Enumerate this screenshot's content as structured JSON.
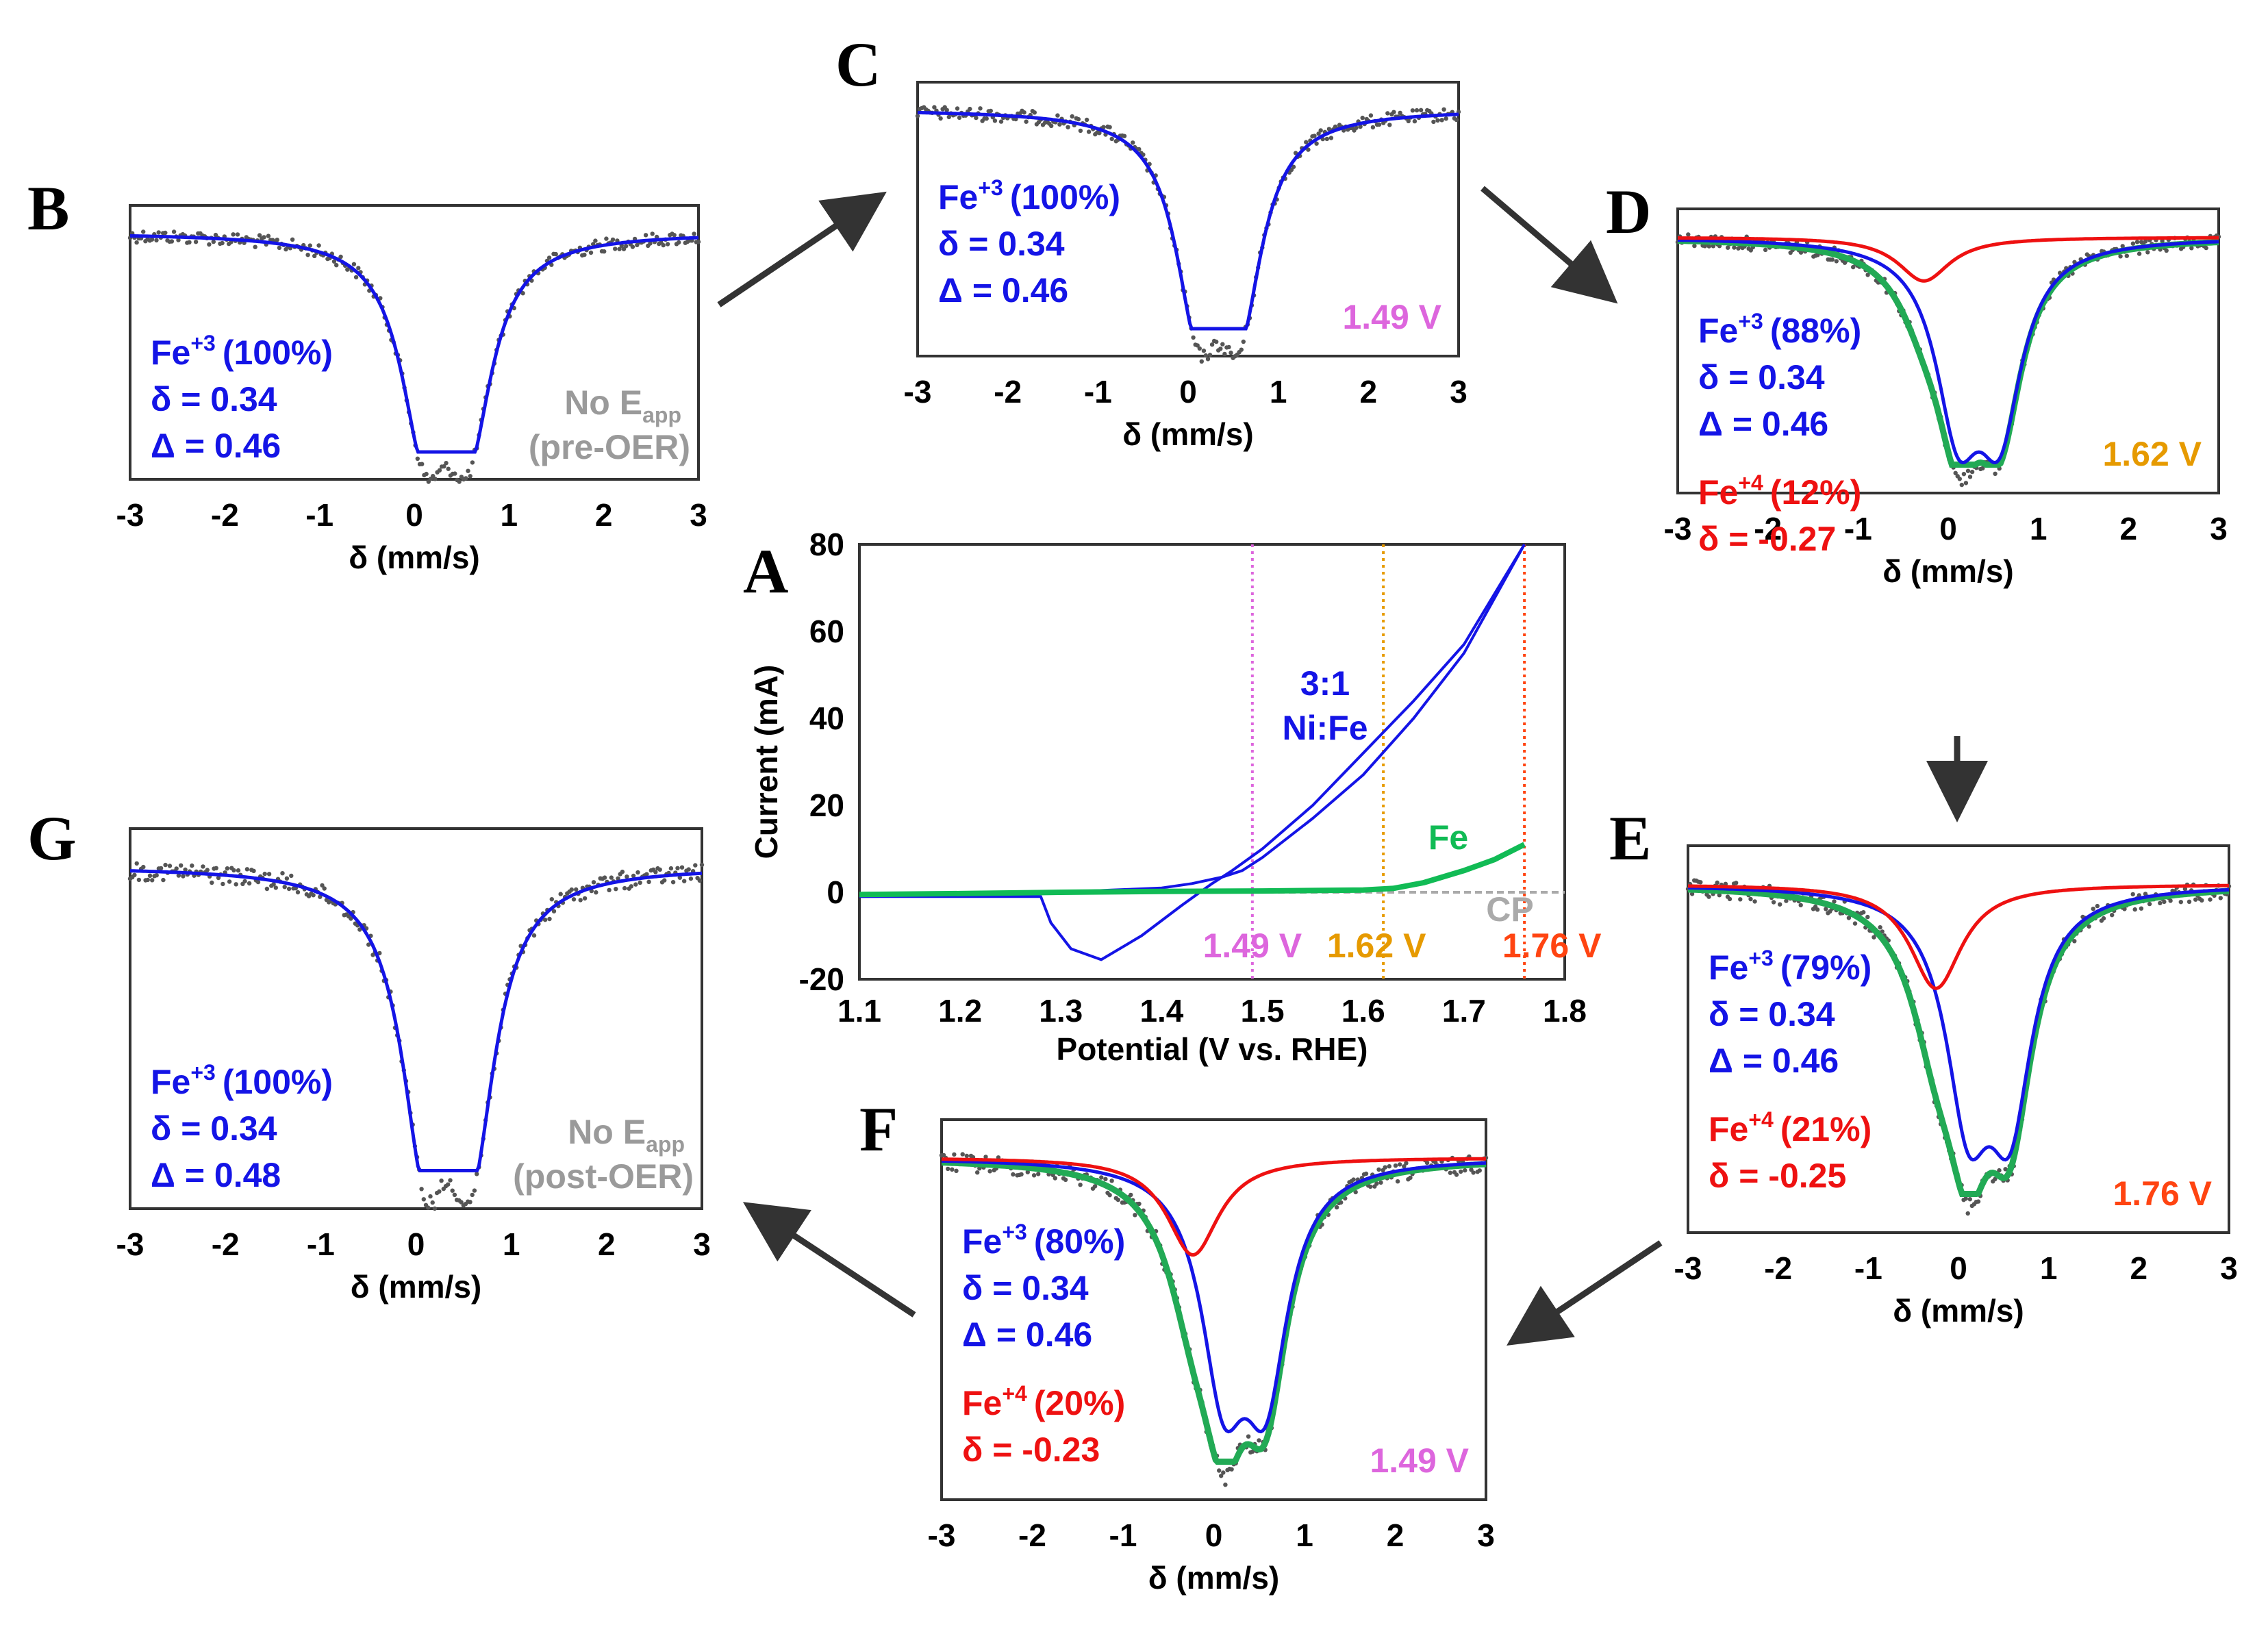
{
  "colors": {
    "fe3": "#1414e6",
    "fe4": "#ee1111",
    "total_fit": "#22aa55",
    "data_points": "#555555",
    "gray_label": "#9a9a9a",
    "v149": "#dd66dd",
    "v162": "#e69a00",
    "v176": "#ff4411",
    "fe_curve": "#11bb55",
    "nife_curve": "#1414e6",
    "arrow": "#333333"
  },
  "chart_data": [
    {
      "id": "A",
      "type": "line",
      "panel_letter": "A",
      "xlabel": "Potential (V vs. RHE)",
      "ylabel": "Current (mA)",
      "xlim": [
        1.1,
        1.8
      ],
      "ylim": [
        -20,
        80
      ],
      "xticks": [
        "1.1",
        "1.2",
        "1.3",
        "1.4",
        "1.5",
        "1.6",
        "1.7",
        "1.8"
      ],
      "yticks": [
        "-20",
        "0",
        "20",
        "40",
        "60",
        "80"
      ],
      "series": [
        {
          "name": "3:1 Ni:Fe (forward)",
          "x": [
            1.1,
            1.2,
            1.3,
            1.35,
            1.4,
            1.43,
            1.46,
            1.48,
            1.5,
            1.55,
            1.6,
            1.65,
            1.7,
            1.76
          ],
          "y": [
            -1,
            -0.8,
            0,
            0.5,
            1,
            2,
            3.5,
            5,
            8,
            17,
            27,
            40,
            55,
            80
          ]
        },
        {
          "name": "3:1 Ni:Fe (reverse)",
          "x": [
            1.76,
            1.7,
            1.65,
            1.6,
            1.55,
            1.5,
            1.47,
            1.45,
            1.42,
            1.38,
            1.34,
            1.31,
            1.29,
            1.28,
            1.2,
            1.1
          ],
          "y": [
            80,
            57,
            44,
            32,
            20,
            10,
            5,
            2,
            -3,
            -10,
            -15.5,
            -13,
            -7,
            -1,
            -1,
            -1
          ]
        },
        {
          "name": "Fe",
          "x": [
            1.1,
            1.2,
            1.3,
            1.4,
            1.5,
            1.6,
            1.63,
            1.66,
            1.7,
            1.73,
            1.76
          ],
          "y": [
            -0.5,
            -0.3,
            0,
            0.2,
            0.3,
            0.5,
            0.9,
            2.2,
            5,
            7.5,
            11
          ]
        },
        {
          "name": "CP",
          "x": [
            1.45,
            1.8
          ],
          "y": [
            0,
            0
          ]
        }
      ],
      "vlines": [
        {
          "x": 1.49,
          "label": "1.49 V"
        },
        {
          "x": 1.62,
          "label": "1.62 V"
        },
        {
          "x": 1.76,
          "label": "1.76 V"
        }
      ],
      "annotations": {
        "nife_line1": "3:1",
        "nife_line2": "Ni:Fe",
        "fe": "Fe",
        "cp": "CP"
      }
    },
    {
      "id": "B",
      "type": "scatter",
      "panel_letter": "B",
      "xlabel": "δ (mm/s)",
      "xlim": [
        -3,
        3
      ],
      "xticks": [
        "-3",
        "-2",
        "-1",
        "0",
        "1",
        "2",
        "3"
      ],
      "fe3": {
        "label": "Fe",
        "sup": "+3",
        "pct": "(100%)",
        "delta": "δ = 0.34",
        "quad": "Δ = 0.46",
        "center": 0.34,
        "split": 0.46,
        "gamma": 0.3
      },
      "fe4": null,
      "condition": {
        "line1": "No E",
        "line1_sub": "app",
        "line2": "(pre-OER)"
      }
    },
    {
      "id": "C",
      "type": "scatter",
      "panel_letter": "C",
      "xlabel": "δ (mm/s)",
      "xlim": [
        -3,
        3
      ],
      "xticks": [
        "-3",
        "-2",
        "-1",
        "0",
        "1",
        "2",
        "3"
      ],
      "fe3": {
        "label": "Fe",
        "sup": "+3",
        "pct": "(100%)",
        "delta": "δ = 0.34",
        "quad": "Δ = 0.46",
        "center": 0.34,
        "split": 0.46,
        "gamma": 0.3
      },
      "fe4": null,
      "condition": {
        "voltage": "1.49 V"
      }
    },
    {
      "id": "D",
      "type": "scatter",
      "panel_letter": "D",
      "xlabel": "δ (mm/s)",
      "xlim": [
        -3,
        3
      ],
      "xticks": [
        "-3",
        "-2",
        "-1",
        "0",
        "1",
        "2",
        "3"
      ],
      "fe3": {
        "label": "Fe",
        "sup": "+3",
        "pct": "(88%)",
        "delta": "δ = 0.34",
        "quad": "Δ  = 0.46",
        "center": 0.34,
        "split": 0.46,
        "gamma": 0.3
      },
      "fe4": {
        "label": "Fe",
        "sup": "+4",
        "pct": "(12%)",
        "delta": "δ = -0.27",
        "center": -0.27,
        "gamma": 0.35
      },
      "condition": {
        "voltage": "1.62 V"
      }
    },
    {
      "id": "E",
      "type": "scatter",
      "panel_letter": "E",
      "xlabel": "δ (mm/s)",
      "xlim": [
        -3,
        3
      ],
      "xticks": [
        "-3",
        "-2",
        "-1",
        "0",
        "1",
        "2",
        "3"
      ],
      "fe3": {
        "label": "Fe",
        "sup": "+3",
        "pct": "(79%)",
        "delta": "δ = 0.34",
        "quad": "Δ  = 0.46",
        "center": 0.34,
        "split": 0.46,
        "gamma": 0.3
      },
      "fe4": {
        "label": "Fe",
        "sup": "+4",
        "pct": "(21%)",
        "delta": "δ = -0.25",
        "center": -0.25,
        "gamma": 0.35
      },
      "condition": {
        "voltage": "1.76 V"
      }
    },
    {
      "id": "F",
      "type": "scatter",
      "panel_letter": "F",
      "xlabel": "δ (mm/s)",
      "xlim": [
        -3,
        3
      ],
      "xticks": [
        "-3",
        "-2",
        "-1",
        "0",
        "1",
        "2",
        "3"
      ],
      "fe3": {
        "label": "Fe",
        "sup": "+3",
        "pct": "(80%)",
        "delta": "δ = 0.34",
        "quad": "Δ  = 0.46",
        "center": 0.34,
        "split": 0.46,
        "gamma": 0.3
      },
      "fe4": {
        "label": "Fe",
        "sup": "+4",
        "pct": "(20%)",
        "delta": "δ = -0.23",
        "center": -0.23,
        "gamma": 0.35
      },
      "condition": {
        "voltage": "1.49 V"
      }
    },
    {
      "id": "G",
      "type": "scatter",
      "panel_letter": "G",
      "xlabel": "δ (mm/s)",
      "xlim": [
        -3,
        3
      ],
      "xticks": [
        "-3",
        "-2",
        "-1",
        "0",
        "1",
        "2",
        "3"
      ],
      "fe3": {
        "label": "Fe",
        "sup": "+3",
        "pct": "(100%)",
        "delta": "δ = 0.34",
        "quad": "Δ = 0.48",
        "center": 0.34,
        "split": 0.48,
        "gamma": 0.3
      },
      "fe4": null,
      "condition": {
        "line1": "No E",
        "line1_sub": "app",
        "line2": "(post-OER)"
      }
    }
  ]
}
